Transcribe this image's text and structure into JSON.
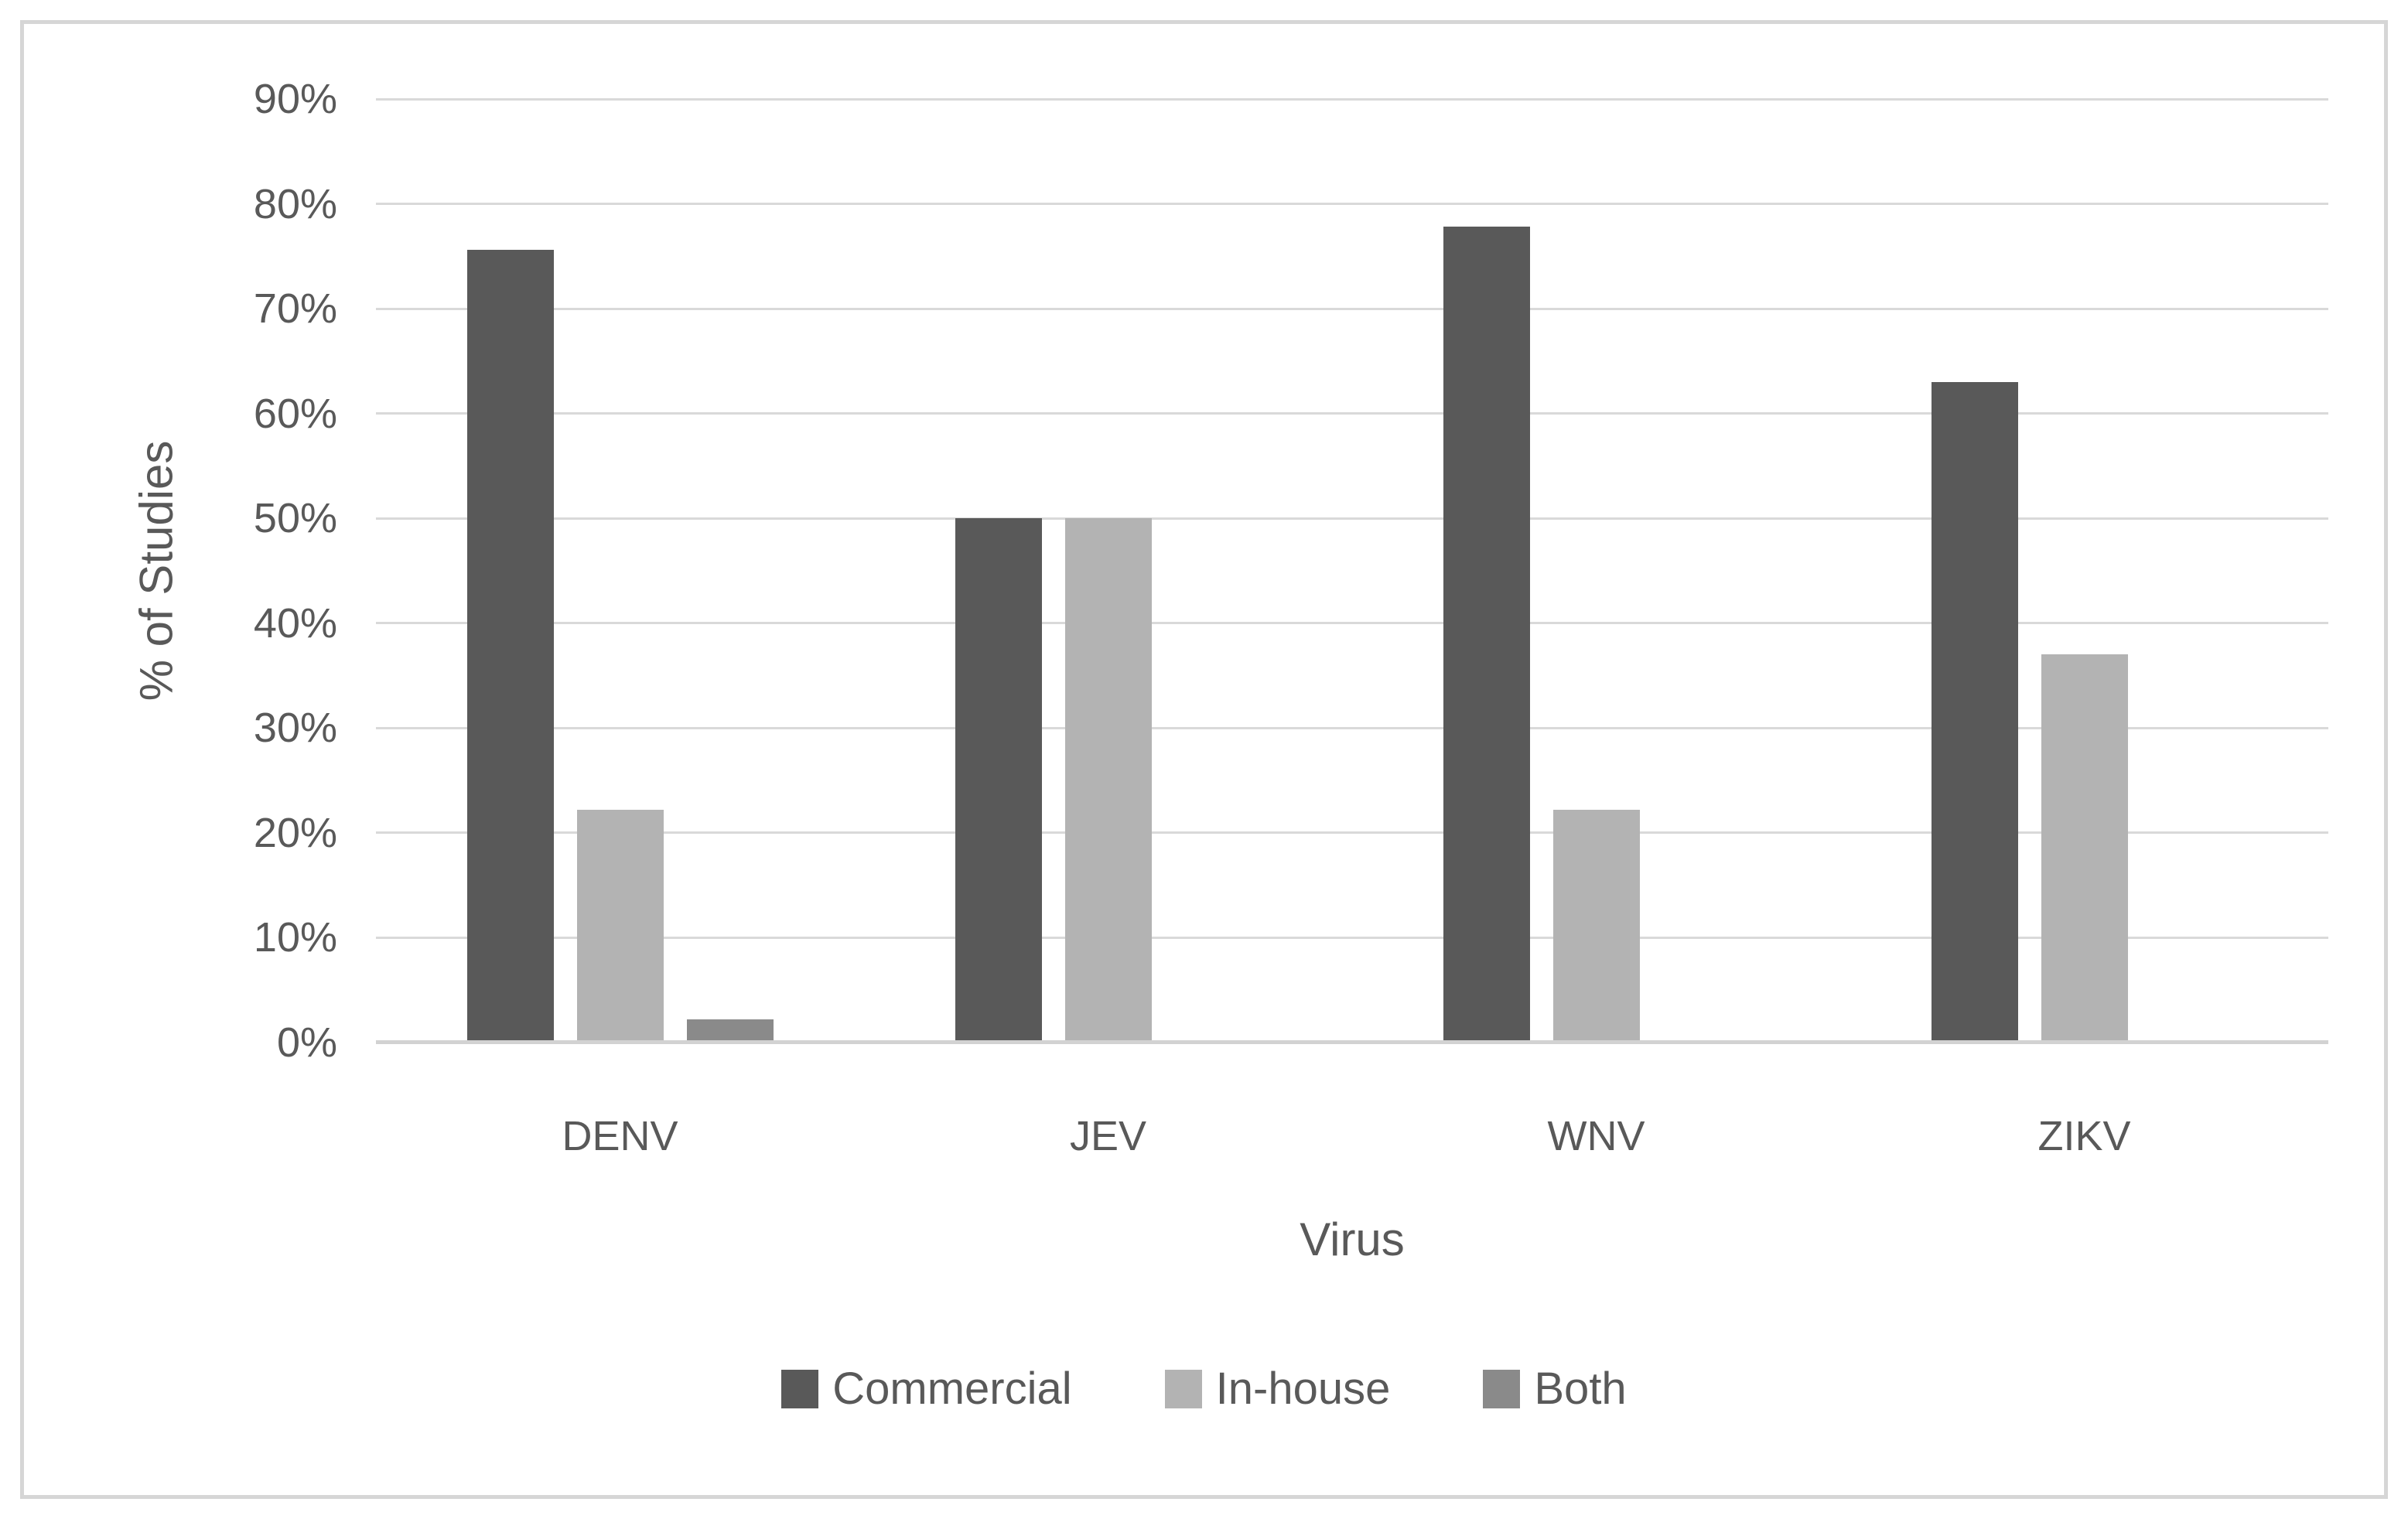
{
  "chart_data": {
    "type": "bar",
    "title": "",
    "xlabel": "Virus",
    "ylabel": "% of Studies",
    "categories": [
      "DENV",
      "JEV",
      "WNV",
      "ZIKV"
    ],
    "series": [
      {
        "name": "Commercial",
        "color": "#595959",
        "values": [
          75.6,
          50,
          77.8,
          63
        ]
      },
      {
        "name": "In-house",
        "color": "#b3b3b3",
        "values": [
          22.2,
          50,
          22.2,
          37
        ]
      },
      {
        "name": "Both",
        "color": "#8a8a8a",
        "values": [
          2.2,
          0,
          0,
          0
        ]
      }
    ],
    "ylim": [
      0,
      90
    ],
    "ytick_step": 10,
    "yticks": [
      "0%",
      "10%",
      "20%",
      "30%",
      "40%",
      "50%",
      "60%",
      "70%",
      "80%",
      "90%"
    ],
    "grid": true,
    "gridline_color": "#d9d9d9",
    "axis_text_color": "#595959",
    "legend_position": "bottom"
  }
}
